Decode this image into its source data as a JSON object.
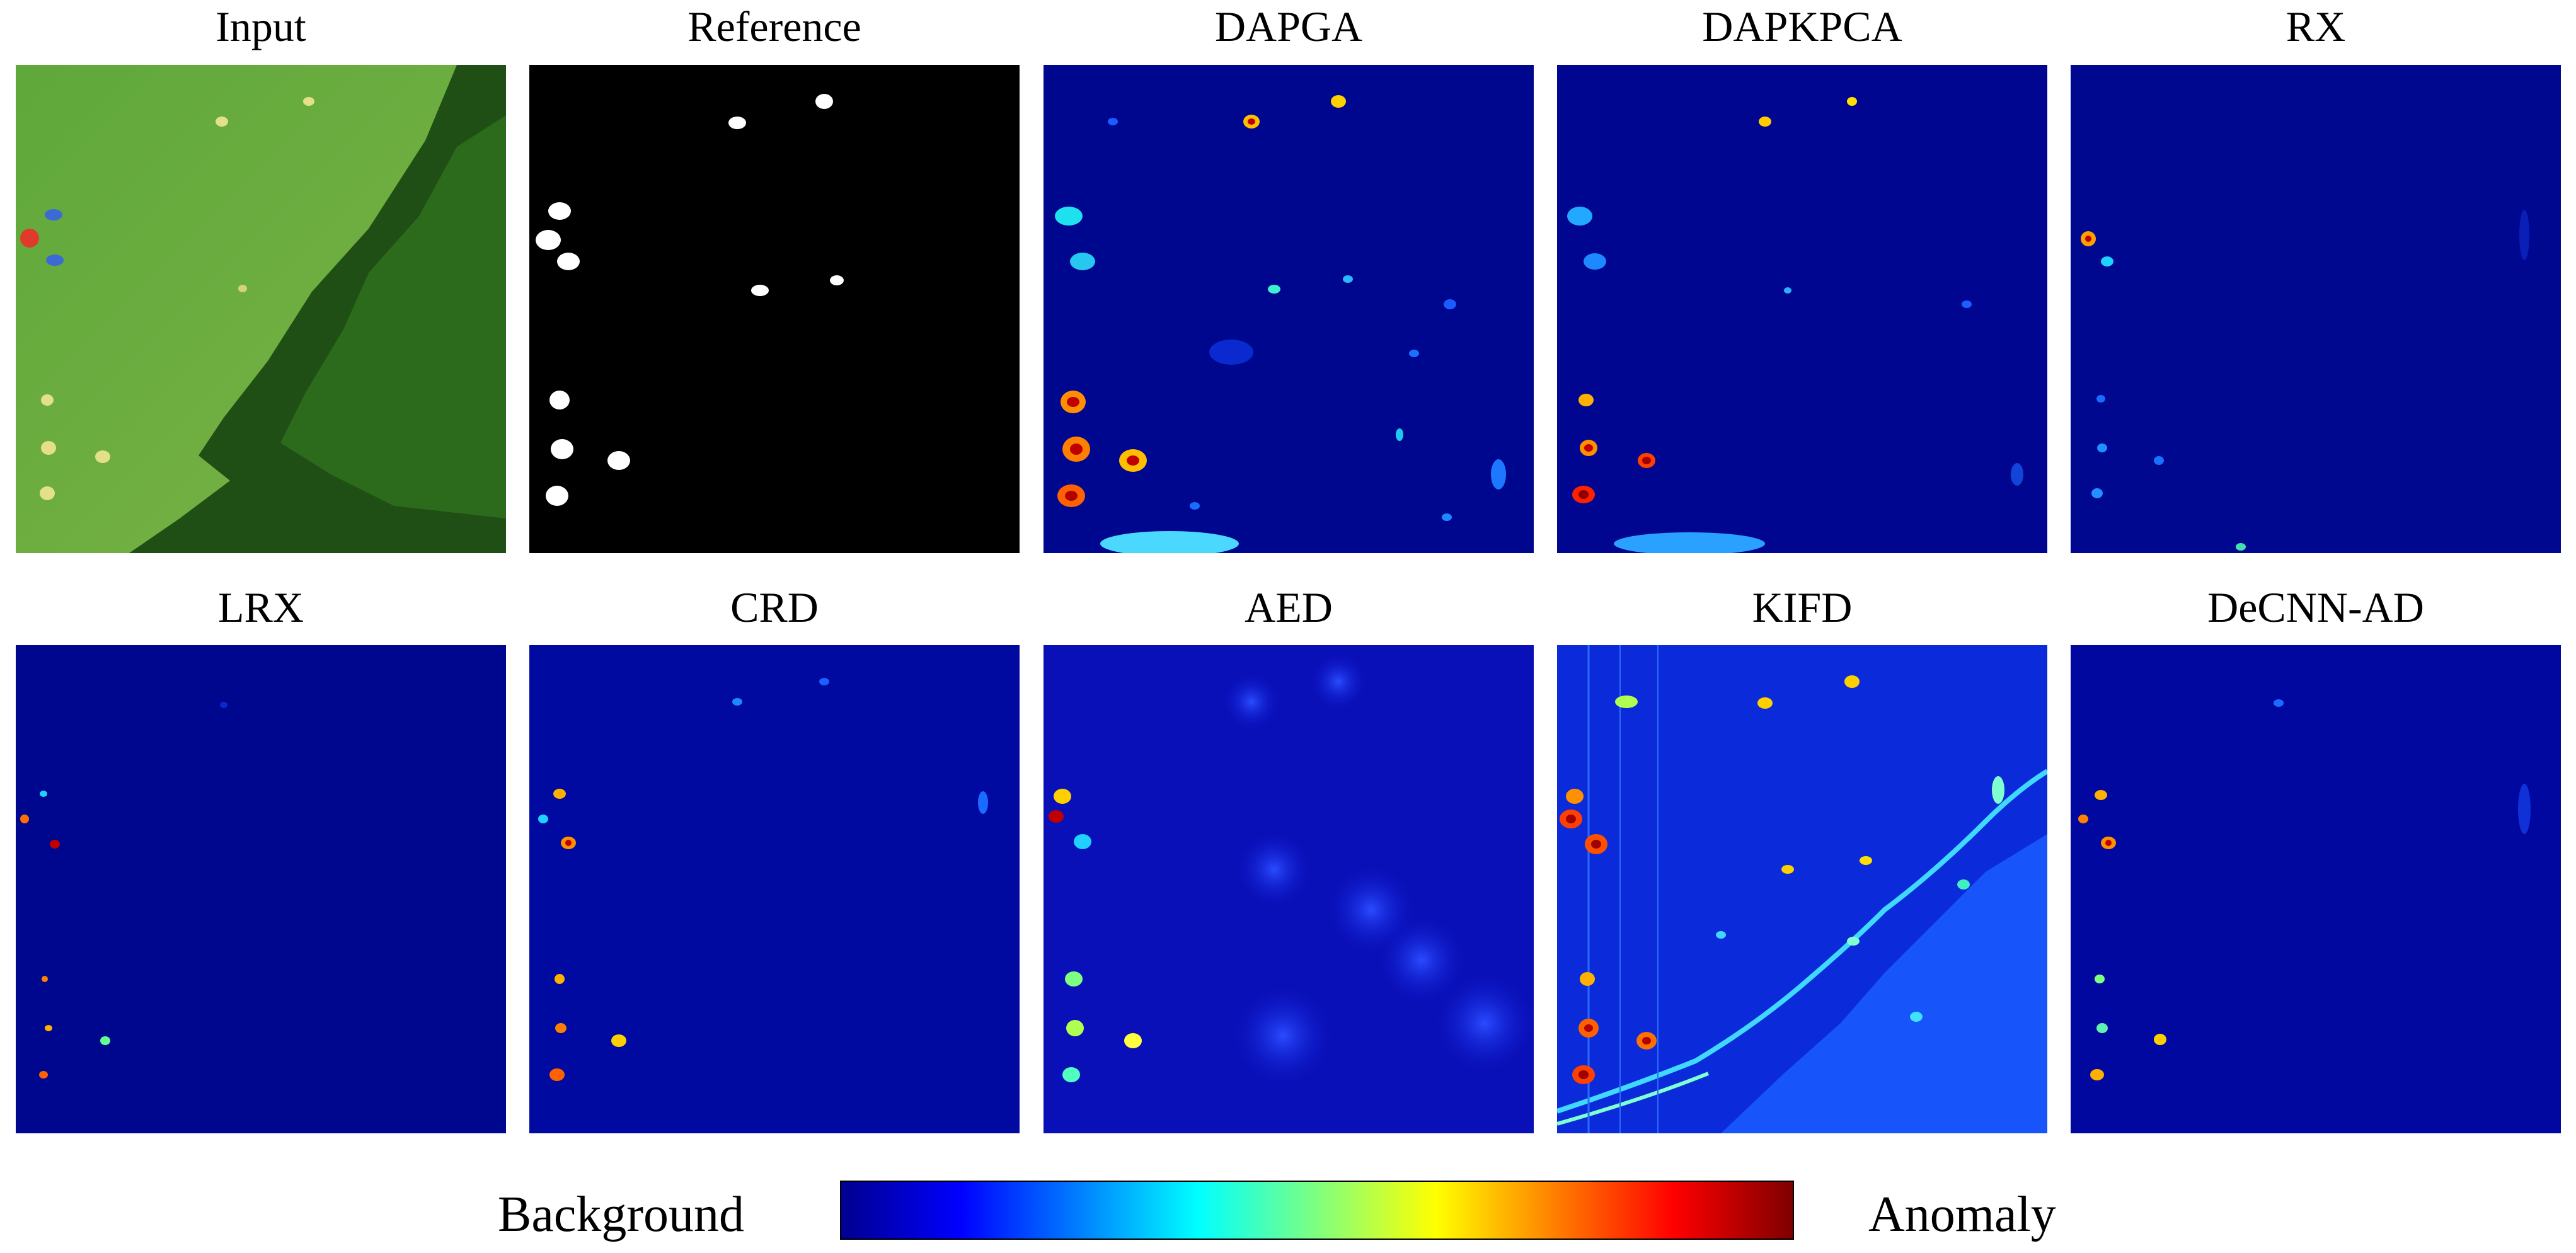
{
  "panels": [
    {
      "title": "Input",
      "kind": "input"
    },
    {
      "title": "Reference",
      "kind": "reference"
    },
    {
      "title": "DAPGA",
      "kind": "heat-strong"
    },
    {
      "title": "DAPKPCA",
      "kind": "heat-strong"
    },
    {
      "title": "RX",
      "kind": "heat-weak"
    },
    {
      "title": "LRX",
      "kind": "heat-weak"
    },
    {
      "title": "CRD",
      "kind": "heat-weak"
    },
    {
      "title": "AED",
      "kind": "heat-blur"
    },
    {
      "title": "KIFD",
      "kind": "heat-noisy"
    },
    {
      "title": "DeCNN-AD",
      "kind": "heat-weak"
    }
  ],
  "legend": {
    "left_label": "Background",
    "right_label": "Anomaly",
    "colormap": "jet",
    "colors": [
      "#00008f",
      "#0000ff",
      "#007fff",
      "#00ffff",
      "#7fff7f",
      "#ffff00",
      "#ff7f00",
      "#ff0000",
      "#7f0000"
    ]
  }
}
